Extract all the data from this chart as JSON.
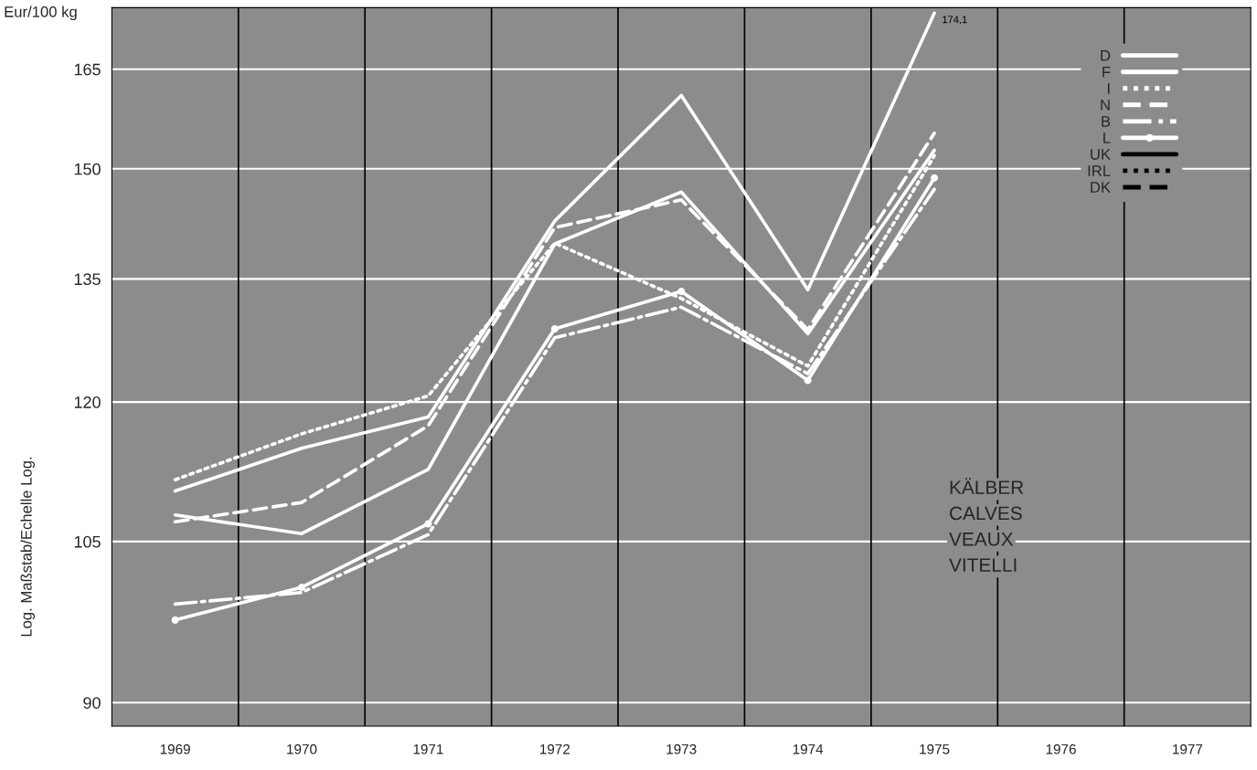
{
  "chart_data": {
    "type": "line",
    "ylabel": "Eur/100 kg",
    "categories": [
      "1969",
      "1970",
      "1971",
      "1972",
      "1973",
      "1974",
      "1975",
      "1976",
      "1977"
    ],
    "series": [
      {
        "name": "D",
        "color": "#ffffff",
        "line_style": "solid",
        "values": [
          110.2,
          114.8,
          118.3,
          142.7,
          160.9,
          133.6,
          174.1,
          null,
          null
        ]
      },
      {
        "name": "F",
        "color": "#ffffff",
        "line_style": "solid",
        "values": [
          107.7,
          105.8,
          112.5,
          139.6,
          146.7,
          128.1,
          152.7,
          null,
          null
        ]
      },
      {
        "name": "I",
        "color": "#ffffff",
        "line_style": "dotted",
        "values": [
          111.4,
          116.4,
          120.7,
          139.7,
          132.5,
          124.2,
          151.9,
          null,
          null
        ]
      },
      {
        "name": "N",
        "color": "#ffffff",
        "line_style": "dashed",
        "values": [
          107.0,
          109.0,
          117.3,
          141.8,
          145.6,
          128.6,
          155.2,
          null,
          null
        ]
      },
      {
        "name": "B",
        "color": "#ffffff",
        "line_style": "dashdot",
        "values": [
          98.9,
          100.0,
          105.7,
          127.6,
          131.4,
          123.3,
          147.1,
          null,
          null
        ]
      },
      {
        "name": "L",
        "color": "#ffffff",
        "line_style": "solid",
        "marker": "circle",
        "values": [
          97.4,
          100.5,
          106.8,
          128.7,
          133.4,
          122.5,
          148.7,
          null,
          null
        ]
      },
      {
        "name": "UK",
        "color": "#000000",
        "line_style": "solid",
        "values": [
          null,
          null,
          null,
          null,
          null,
          null,
          null,
          null,
          null
        ]
      },
      {
        "name": "IRL",
        "color": "#000000",
        "line_style": "dotted",
        "values": [
          null,
          null,
          null,
          null,
          null,
          null,
          null,
          null,
          null
        ]
      },
      {
        "name": "DK",
        "color": "#000000",
        "line_style": "dashed",
        "values": [
          null,
          null,
          null,
          null,
          null,
          null,
          null,
          null,
          null
        ]
      }
    ],
    "log": true,
    "ylim": [
      88,
      175
    ],
    "yticks": [
      90,
      105,
      120,
      135,
      150,
      165
    ],
    "grid": true,
    "legend": "top right",
    "annotations": [
      "Log. Maßstab/Echelle Log.",
      "KÄLBER",
      "CALVES",
      "VEAUX",
      "VITELLI",
      {
        "text": "174,1",
        "x": "1975",
        "y": 174.1
      }
    ]
  }
}
